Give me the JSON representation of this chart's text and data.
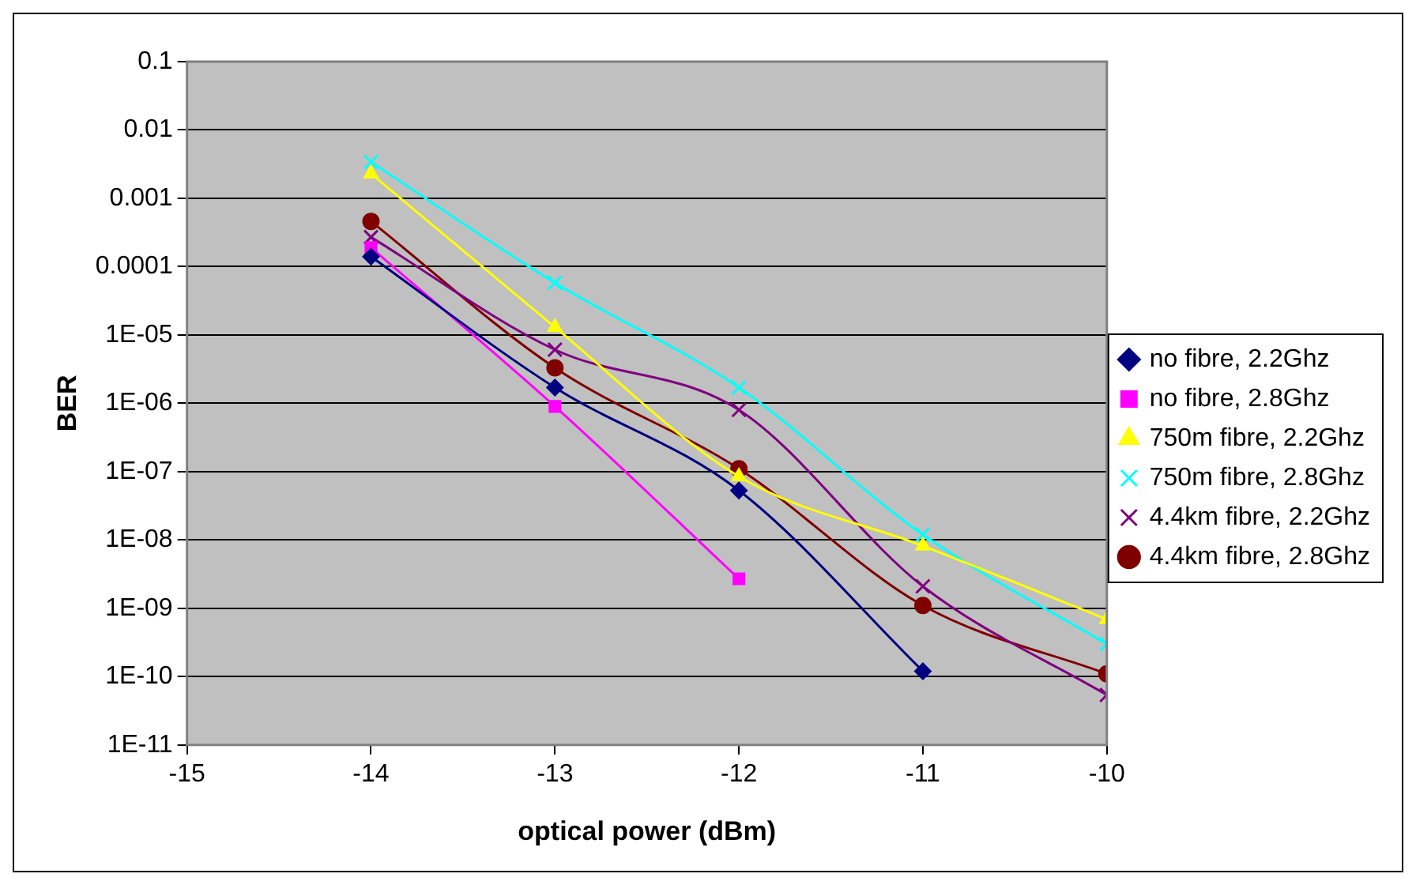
{
  "chart_data": {
    "type": "line",
    "xlabel": "optical power (dBm)",
    "ylabel": "BER",
    "x": [
      -14,
      -13,
      -12,
      -11,
      -10
    ],
    "series": [
      {
        "name": "no fibre, 2.2Ghz",
        "color": "#000080",
        "marker": "diamond",
        "values": [
          0.00014,
          1.7e-06,
          5.3e-08,
          1.2e-10,
          null
        ]
      },
      {
        "name": "no fibre, 2.8Ghz",
        "color": "#ff00ff",
        "marker": "square",
        "values": [
          0.00019,
          9e-07,
          2.7e-09,
          null,
          null
        ]
      },
      {
        "name": "750m fibre, 2.2Ghz",
        "color": "#ffff00",
        "marker": "triangle",
        "values": [
          0.0023,
          1.3e-05,
          8.5e-08,
          8.2e-09,
          6.9e-10
        ]
      },
      {
        "name": "750m fibre, 2.8Ghz",
        "color": "#00ffff",
        "marker": "cross",
        "values": [
          0.0034,
          5.8e-05,
          1.7e-06,
          1.2e-08,
          3e-10
        ]
      },
      {
        "name": "4.4km fibre, 2.2Ghz",
        "color": "#800080",
        "marker": "cross",
        "values": [
          0.00027,
          6.1e-06,
          8e-07,
          2.1e-09,
          5.4e-11
        ]
      },
      {
        "name": "4.4km fibre, 2.8Ghz",
        "color": "#800000",
        "marker": "circle",
        "values": [
          0.00046,
          3.3e-06,
          1.1e-07,
          1.1e-09,
          1.1e-10
        ]
      }
    ],
    "xlim": [
      -15,
      -10
    ],
    "xticks": [
      -15,
      -14,
      -13,
      -12,
      -11,
      -10
    ],
    "log": "y",
    "ylim": [
      1e-11,
      0.1
    ],
    "yticks": [
      {
        "value": 0.1,
        "label": "0.1"
      },
      {
        "value": 0.01,
        "label": "0.01"
      },
      {
        "value": 0.001,
        "label": "0.001"
      },
      {
        "value": 0.0001,
        "label": "0.0001"
      },
      {
        "value": 1e-05,
        "label": "1E-05"
      },
      {
        "value": 1e-06,
        "label": "1E-06"
      },
      {
        "value": 1e-07,
        "label": "1E-07"
      },
      {
        "value": 1e-08,
        "label": "1E-08"
      },
      {
        "value": 1e-09,
        "label": "1E-09"
      },
      {
        "value": 1e-10,
        "label": "1E-10"
      },
      {
        "value": 1e-11,
        "label": "1E-11"
      }
    ],
    "grid": "y",
    "legend": "right"
  }
}
